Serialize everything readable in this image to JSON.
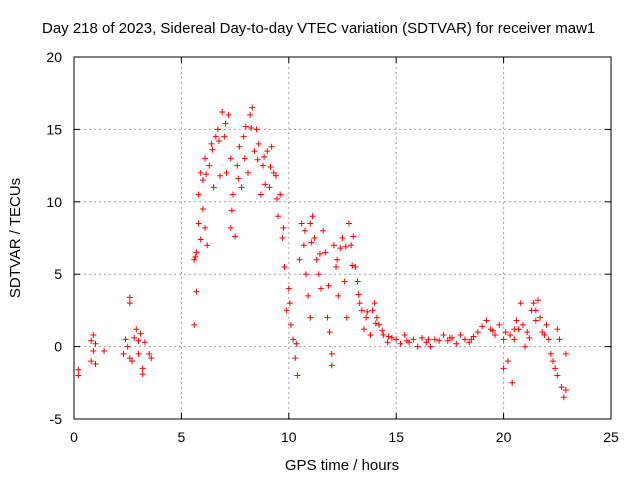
{
  "chart_data": {
    "type": "scatter",
    "title": "Day 218 of 2023, Sidereal Day-to-day VTEC variation (SDTVAR) for receiver maw1",
    "xlabel": "GPS time / hours",
    "ylabel": "SDTVAR / TECUs",
    "xlim": [
      0,
      25
    ],
    "ylim": [
      -5,
      20
    ],
    "xticks": [
      0,
      5,
      10,
      15,
      20,
      25
    ],
    "yticks": [
      -5,
      0,
      5,
      10,
      15,
      20
    ],
    "xtick_labels": [
      "0",
      "5",
      "10",
      "15",
      "20",
      "25"
    ],
    "ytick_labels": [
      "-5",
      "0",
      "5",
      "10",
      "15",
      "20"
    ],
    "grid": true,
    "marker": "+",
    "color": "#ff0000",
    "series": [
      {
        "name": "maw1",
        "points": [
          [
            0.2,
            -1.6
          ],
          [
            0.2,
            -2.0
          ],
          [
            0.8,
            -1.0
          ],
          [
            0.8,
            0.4
          ],
          [
            0.9,
            -0.3
          ],
          [
            0.9,
            0.8
          ],
          [
            1.0,
            -1.2
          ],
          [
            1.0,
            0.2
          ],
          [
            1.4,
            -0.3
          ],
          [
            2.3,
            -0.5
          ],
          [
            2.4,
            0.5
          ],
          [
            2.5,
            0.0
          ],
          [
            2.6,
            -0.8
          ],
          [
            2.6,
            3.4
          ],
          [
            2.6,
            3.0
          ],
          [
            2.7,
            -1.0
          ],
          [
            2.8,
            0.6
          ],
          [
            2.9,
            1.2
          ],
          [
            3.0,
            0.4
          ],
          [
            3.0,
            -0.5
          ],
          [
            3.1,
            0.9
          ],
          [
            3.2,
            -1.5
          ],
          [
            3.2,
            -1.9
          ],
          [
            3.3,
            0.3
          ],
          [
            3.5,
            -0.5
          ],
          [
            3.6,
            -0.8
          ],
          [
            5.6,
            1.5
          ],
          [
            5.6,
            6.0
          ],
          [
            5.7,
            3.8
          ],
          [
            5.7,
            6.5
          ],
          [
            5.8,
            8.5
          ],
          [
            5.8,
            10.5
          ],
          [
            5.9,
            12.0
          ],
          [
            6.0,
            9.5
          ],
          [
            6.0,
            11.5
          ],
          [
            6.1,
            8.2
          ],
          [
            6.1,
            13.0
          ],
          [
            6.2,
            7.0
          ],
          [
            6.3,
            12.5
          ],
          [
            6.4,
            14.0
          ],
          [
            6.5,
            11.0
          ],
          [
            6.6,
            14.5
          ],
          [
            6.7,
            15.0
          ],
          [
            6.8,
            11.8
          ],
          [
            6.9,
            16.2
          ],
          [
            7.0,
            14.5
          ],
          [
            7.1,
            12.0
          ],
          [
            7.2,
            16.0
          ],
          [
            7.3,
            13.0
          ],
          [
            7.3,
            8.2
          ],
          [
            7.4,
            10.5
          ],
          [
            7.5,
            7.6
          ],
          [
            7.6,
            12.5
          ],
          [
            7.7,
            13.8
          ],
          [
            7.8,
            11.0
          ],
          [
            7.9,
            14.5
          ],
          [
            8.0,
            15.2
          ],
          [
            8.1,
            12.0
          ],
          [
            8.2,
            16.0
          ],
          [
            8.3,
            16.5
          ],
          [
            8.4,
            13.5
          ],
          [
            8.5,
            15.0
          ],
          [
            8.6,
            14.0
          ],
          [
            8.7,
            10.5
          ],
          [
            8.8,
            12.5
          ],
          [
            8.9,
            11.2
          ],
          [
            9.0,
            13.5
          ],
          [
            9.1,
            11.0
          ],
          [
            9.2,
            13.8
          ],
          [
            9.3,
            12.0
          ],
          [
            9.4,
            11.8
          ],
          [
            9.5,
            9.0
          ],
          [
            9.6,
            10.5
          ],
          [
            9.7,
            7.5
          ],
          [
            9.8,
            5.5
          ],
          [
            9.9,
            2.5
          ],
          [
            10.0,
            4.0
          ],
          [
            10.1,
            1.5
          ],
          [
            10.2,
            0.5
          ],
          [
            10.3,
            -0.8
          ],
          [
            10.4,
            -2.0
          ],
          [
            10.5,
            6.0
          ],
          [
            10.6,
            8.5
          ],
          [
            10.7,
            7.0
          ],
          [
            10.8,
            5.0
          ],
          [
            10.9,
            3.5
          ],
          [
            11.0,
            2.0
          ],
          [
            11.0,
            8.5
          ],
          [
            11.1,
            9.0
          ],
          [
            11.2,
            7.5
          ],
          [
            11.3,
            6.0
          ],
          [
            11.4,
            5.0
          ],
          [
            11.5,
            4.0
          ],
          [
            11.6,
            8.0
          ],
          [
            11.7,
            6.5
          ],
          [
            11.8,
            2.0
          ],
          [
            11.9,
            1.0
          ],
          [
            12.0,
            -0.5
          ],
          [
            12.0,
            -1.3
          ],
          [
            12.1,
            7.0
          ],
          [
            12.2,
            5.5
          ],
          [
            12.3,
            3.5
          ],
          [
            12.4,
            6.8
          ],
          [
            12.5,
            7.5
          ],
          [
            12.6,
            4.5
          ],
          [
            12.7,
            2.0
          ],
          [
            12.8,
            8.5
          ],
          [
            12.9,
            7.0
          ],
          [
            13.0,
            7.6
          ],
          [
            13.1,
            5.5
          ],
          [
            13.2,
            4.5
          ],
          [
            13.3,
            3.0
          ],
          [
            13.4,
            2.5
          ],
          [
            13.5,
            1.2
          ],
          [
            13.6,
            2.0
          ],
          [
            13.8,
            0.8
          ],
          [
            13.9,
            2.5
          ],
          [
            14.0,
            3.0
          ],
          [
            14.1,
            2.0
          ],
          [
            14.2,
            1.5
          ],
          [
            14.4,
            0.8
          ],
          [
            14.6,
            0.3
          ],
          [
            14.8,
            0.6
          ],
          [
            15.0,
            0.5
          ],
          [
            15.2,
            0.2
          ],
          [
            15.4,
            0.8
          ],
          [
            15.6,
            0.3
          ],
          [
            15.8,
            0.5
          ],
          [
            16.0,
            0.0
          ],
          [
            16.2,
            0.6
          ],
          [
            16.4,
            0.3
          ],
          [
            16.6,
            0.0
          ],
          [
            16.8,
            0.5
          ],
          [
            17.0,
            0.4
          ],
          [
            17.2,
            0.8
          ],
          [
            17.4,
            0.4
          ],
          [
            17.6,
            0.6
          ],
          [
            17.8,
            0.2
          ],
          [
            18.0,
            0.8
          ],
          [
            18.2,
            0.5
          ],
          [
            18.4,
            0.3
          ],
          [
            18.6,
            0.7
          ],
          [
            18.8,
            1.0
          ],
          [
            19.0,
            1.4
          ],
          [
            19.2,
            1.8
          ],
          [
            19.4,
            1.2
          ],
          [
            19.6,
            0.8
          ],
          [
            19.8,
            1.5
          ],
          [
            20.0,
            0.5
          ],
          [
            20.0,
            -1.5
          ],
          [
            20.1,
            1.0
          ],
          [
            20.2,
            -1.0
          ],
          [
            20.3,
            0.8
          ],
          [
            20.4,
            -2.5
          ],
          [
            20.5,
            0.5
          ],
          [
            20.6,
            1.8
          ],
          [
            20.7,
            1.2
          ],
          [
            20.8,
            3.0
          ],
          [
            20.9,
            1.5
          ],
          [
            21.0,
            0.0
          ],
          [
            21.1,
            1.0
          ],
          [
            21.2,
            0.6
          ],
          [
            21.3,
            2.5
          ],
          [
            21.4,
            3.0
          ],
          [
            21.5,
            1.8
          ],
          [
            21.6,
            3.2
          ],
          [
            21.7,
            2.0
          ],
          [
            21.8,
            1.0
          ],
          [
            21.9,
            0.8
          ],
          [
            22.0,
            1.5
          ],
          [
            22.1,
            0.5
          ],
          [
            22.2,
            -0.5
          ],
          [
            22.3,
            -1.0
          ],
          [
            22.4,
            -1.5
          ],
          [
            22.5,
            -2.0
          ],
          [
            22.6,
            0.5
          ],
          [
            22.7,
            -2.8
          ],
          [
            22.8,
            -3.5
          ],
          [
            22.9,
            -0.5
          ],
          [
            5.65,
            6.2
          ],
          [
            5.9,
            7.4
          ],
          [
            6.15,
            11.9
          ],
          [
            6.45,
            13.6
          ],
          [
            6.75,
            14.2
          ],
          [
            7.05,
            15.4
          ],
          [
            7.35,
            9.4
          ],
          [
            7.65,
            11.6
          ],
          [
            7.95,
            13.0
          ],
          [
            8.25,
            15.1
          ],
          [
            8.55,
            12.9
          ],
          [
            8.85,
            13.1
          ],
          [
            9.15,
            12.4
          ],
          [
            9.45,
            10.2
          ],
          [
            9.75,
            8.2
          ],
          [
            10.05,
            3.0
          ],
          [
            10.35,
            0.2
          ],
          [
            10.75,
            8.0
          ],
          [
            11.05,
            7.2
          ],
          [
            11.45,
            6.4
          ],
          [
            11.85,
            4.2
          ],
          [
            12.25,
            6.0
          ],
          [
            12.65,
            6.9
          ],
          [
            12.95,
            5.6
          ],
          [
            13.25,
            3.6
          ],
          [
            13.65,
            2.4
          ],
          [
            14.05,
            1.6
          ],
          [
            14.35,
            1.1
          ],
          [
            14.65,
            0.7
          ],
          [
            15.5,
            0.4
          ],
          [
            16.5,
            0.5
          ],
          [
            17.5,
            0.6
          ],
          [
            18.5,
            0.5
          ],
          [
            19.5,
            1.1
          ],
          [
            20.5,
            1.2
          ],
          [
            21.5,
            2.5
          ],
          [
            22.5,
            1.2
          ],
          [
            22.9,
            -3.0
          ]
        ]
      }
    ]
  }
}
